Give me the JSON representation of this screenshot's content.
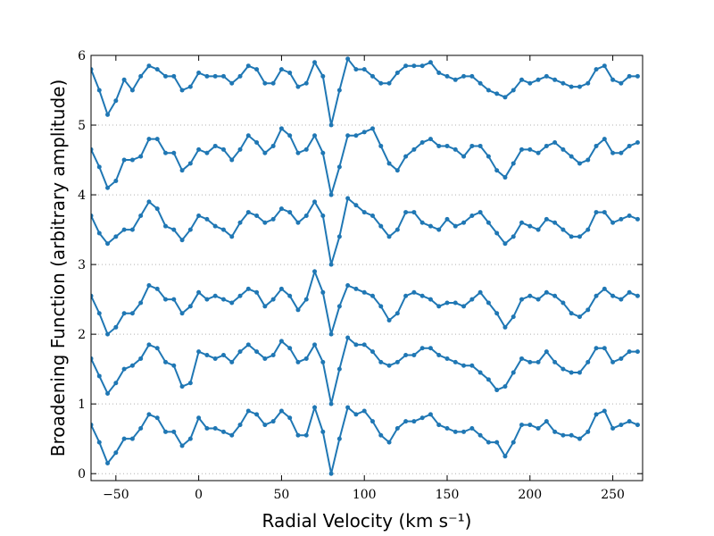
{
  "chart_data": {
    "type": "line",
    "xlabel": "Radial Velocity (km s⁻¹)",
    "ylabel": "Broadening Function (arbitrary amplitude)",
    "xlim": [
      -65,
      268
    ],
    "ylim": [
      -0.1,
      6
    ],
    "xticks": [
      {
        "value": -50,
        "label": "−50"
      },
      0,
      50,
      100,
      150,
      200,
      250
    ],
    "yticks": [
      0,
      1,
      2,
      3,
      4,
      5,
      6
    ],
    "grid": "y",
    "marker": true,
    "x": [
      -65,
      -60,
      -55,
      -50,
      -45,
      -40,
      -35,
      -30,
      -25,
      -20,
      -15,
      -10,
      -5,
      0,
      5,
      10,
      15,
      20,
      25,
      30,
      35,
      40,
      45,
      50,
      55,
      60,
      65,
      70,
      75,
      80,
      85,
      90,
      95,
      100,
      105,
      110,
      115,
      120,
      125,
      130,
      135,
      140,
      145,
      150,
      155,
      160,
      165,
      170,
      175,
      180,
      185,
      190,
      195,
      200,
      205,
      210,
      215,
      220,
      225,
      230,
      235,
      240,
      245,
      250,
      255,
      260,
      265
    ],
    "series": [
      {
        "color": "#1f77b4",
        "values": [
          0.7,
          0.45,
          0.15,
          0.3,
          0.5,
          0.5,
          0.65,
          0.85,
          0.8,
          0.6,
          0.6,
          0.4,
          0.5,
          0.8,
          0.65,
          0.65,
          0.6,
          0.55,
          0.7,
          0.9,
          0.85,
          0.7,
          0.75,
          0.9,
          0.8,
          0.55,
          0.55,
          0.95,
          0.6,
          0.0,
          0.5,
          0.95,
          0.85,
          0.9,
          0.75,
          0.55,
          0.45,
          0.65,
          0.75,
          0.75,
          0.8,
          0.85,
          0.7,
          0.65,
          0.6,
          0.6,
          0.65,
          0.55,
          0.45,
          0.45,
          0.25,
          0.45,
          0.7,
          0.7,
          0.65,
          0.75,
          0.6,
          0.55,
          0.55,
          0.5,
          0.6,
          0.85,
          0.9,
          0.65,
          0.7,
          0.75,
          0.7
        ]
      },
      {
        "color": "#1f77b4",
        "values": [
          1.65,
          1.4,
          1.15,
          1.3,
          1.5,
          1.55,
          1.65,
          1.85,
          1.8,
          1.6,
          1.55,
          1.25,
          1.3,
          1.75,
          1.7,
          1.65,
          1.7,
          1.6,
          1.75,
          1.85,
          1.75,
          1.65,
          1.7,
          1.9,
          1.8,
          1.6,
          1.65,
          1.85,
          1.6,
          1.0,
          1.5,
          1.95,
          1.85,
          1.85,
          1.75,
          1.6,
          1.55,
          1.6,
          1.7,
          1.7,
          1.8,
          1.8,
          1.7,
          1.65,
          1.6,
          1.55,
          1.55,
          1.45,
          1.35,
          1.2,
          1.25,
          1.45,
          1.65,
          1.6,
          1.6,
          1.75,
          1.6,
          1.5,
          1.45,
          1.45,
          1.6,
          1.8,
          1.8,
          1.6,
          1.65,
          1.75,
          1.75
        ]
      },
      {
        "color": "#1f77b4",
        "values": [
          2.55,
          2.3,
          2.0,
          2.1,
          2.3,
          2.3,
          2.45,
          2.7,
          2.65,
          2.5,
          2.5,
          2.3,
          2.4,
          2.6,
          2.5,
          2.55,
          2.5,
          2.45,
          2.55,
          2.65,
          2.6,
          2.4,
          2.5,
          2.65,
          2.55,
          2.35,
          2.5,
          2.9,
          2.6,
          2.0,
          2.4,
          2.7,
          2.65,
          2.6,
          2.55,
          2.4,
          2.2,
          2.3,
          2.55,
          2.6,
          2.55,
          2.5,
          2.4,
          2.45,
          2.45,
          2.4,
          2.5,
          2.6,
          2.45,
          2.3,
          2.1,
          2.25,
          2.5,
          2.55,
          2.5,
          2.6,
          2.55,
          2.45,
          2.3,
          2.25,
          2.35,
          2.55,
          2.65,
          2.55,
          2.5,
          2.6,
          2.55
        ]
      },
      {
        "color": "#1f77b4",
        "values": [
          3.7,
          3.45,
          3.3,
          3.4,
          3.5,
          3.5,
          3.7,
          3.9,
          3.8,
          3.55,
          3.5,
          3.35,
          3.5,
          3.7,
          3.65,
          3.55,
          3.5,
          3.4,
          3.6,
          3.75,
          3.7,
          3.6,
          3.65,
          3.8,
          3.75,
          3.6,
          3.7,
          3.9,
          3.7,
          3.0,
          3.4,
          3.95,
          3.85,
          3.75,
          3.7,
          3.55,
          3.4,
          3.5,
          3.75,
          3.75,
          3.6,
          3.55,
          3.5,
          3.65,
          3.55,
          3.6,
          3.7,
          3.75,
          3.6,
          3.45,
          3.3,
          3.4,
          3.6,
          3.55,
          3.5,
          3.65,
          3.6,
          3.5,
          3.4,
          3.4,
          3.5,
          3.75,
          3.75,
          3.6,
          3.65,
          3.7,
          3.65
        ]
      },
      {
        "color": "#1f77b4",
        "values": [
          4.65,
          4.4,
          4.1,
          4.2,
          4.5,
          4.5,
          4.55,
          4.8,
          4.8,
          4.6,
          4.6,
          4.35,
          4.45,
          4.65,
          4.6,
          4.7,
          4.65,
          4.5,
          4.65,
          4.85,
          4.75,
          4.6,
          4.7,
          4.95,
          4.85,
          4.6,
          4.65,
          4.85,
          4.6,
          4.0,
          4.4,
          4.85,
          4.85,
          4.9,
          4.95,
          4.7,
          4.45,
          4.35,
          4.55,
          4.65,
          4.75,
          4.8,
          4.7,
          4.7,
          4.65,
          4.55,
          4.7,
          4.7,
          4.55,
          4.35,
          4.25,
          4.45,
          4.65,
          4.65,
          4.6,
          4.7,
          4.75,
          4.65,
          4.55,
          4.45,
          4.5,
          4.7,
          4.8,
          4.6,
          4.6,
          4.7,
          4.75
        ]
      },
      {
        "color": "#1f77b4",
        "values": [
          5.8,
          5.5,
          5.15,
          5.35,
          5.65,
          5.5,
          5.7,
          5.85,
          5.8,
          5.7,
          5.7,
          5.5,
          5.55,
          5.75,
          5.7,
          5.7,
          5.7,
          5.6,
          5.7,
          5.85,
          5.8,
          5.6,
          5.6,
          5.8,
          5.75,
          5.55,
          5.6,
          5.9,
          5.7,
          5.0,
          5.5,
          5.95,
          5.8,
          5.8,
          5.7,
          5.6,
          5.6,
          5.75,
          5.85,
          5.85,
          5.85,
          5.9,
          5.75,
          5.7,
          5.65,
          5.7,
          5.7,
          5.6,
          5.5,
          5.45,
          5.4,
          5.5,
          5.65,
          5.6,
          5.65,
          5.7,
          5.65,
          5.6,
          5.55,
          5.55,
          5.6,
          5.8,
          5.85,
          5.65,
          5.6,
          5.7,
          5.7
        ]
      }
    ]
  }
}
